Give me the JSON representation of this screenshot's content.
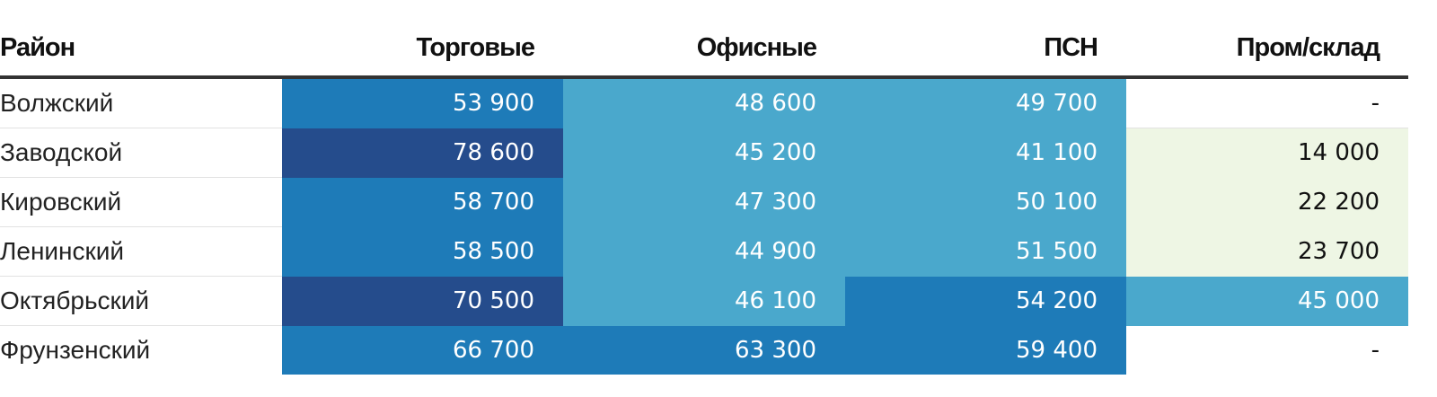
{
  "chart_data": {
    "type": "table",
    "columns": [
      "Район",
      "Торговые",
      "Офисные",
      "ПСН",
      "Пром/склад"
    ],
    "rows": [
      {
        "district": "Волжский",
        "values": [
          "53 900",
          "48 600",
          "49 700",
          "-"
        ]
      },
      {
        "district": "Заводской",
        "values": [
          "78 600",
          "45 200",
          "41 100",
          "14 000"
        ]
      },
      {
        "district": "Кировский",
        "values": [
          "58 700",
          "47 300",
          "50 100",
          "22 200"
        ]
      },
      {
        "district": "Ленинский",
        "values": [
          "58 500",
          "44 900",
          "51 500",
          "23 700"
        ]
      },
      {
        "district": "Октябрьский",
        "values": [
          "70 500",
          "46 100",
          "54 200",
          "45 000"
        ]
      },
      {
        "district": "Фрунзенский",
        "values": [
          "66 700",
          "63 300",
          "59 400",
          "-"
        ]
      }
    ]
  },
  "colors": {
    "bins": [
      {
        "min": 0,
        "max": 19999,
        "bg": "#eef6e4",
        "text": "#111111"
      },
      {
        "min": 20000,
        "max": 39999,
        "bg": "#eef6e4",
        "text": "#111111"
      },
      {
        "min": 40000,
        "max": 52999,
        "bg": "#4aa8cc",
        "text": "#ffffff"
      },
      {
        "min": 53000,
        "max": 69999,
        "bg": "#1e7bb8",
        "text": "#ffffff"
      },
      {
        "min": 70000,
        "max": 999999,
        "bg": "#254c8c",
        "text": "#ffffff"
      }
    ],
    "empty_bg": "#ffffff",
    "empty_text": "#111111"
  }
}
